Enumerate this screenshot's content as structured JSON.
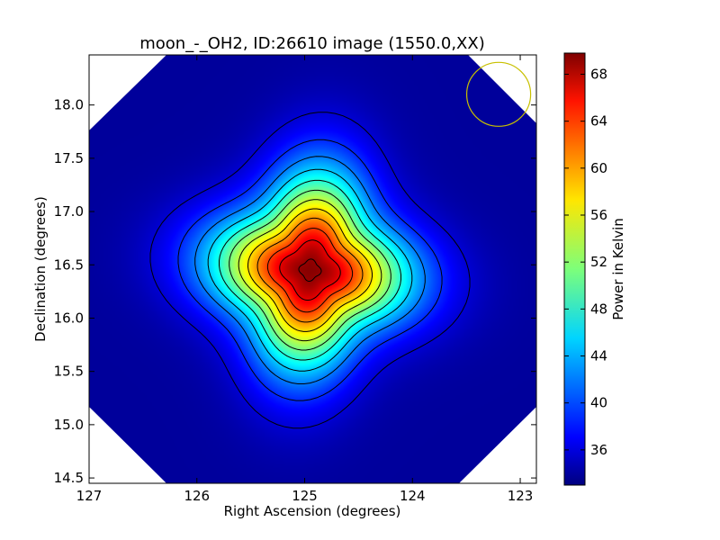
{
  "chart_data": {
    "type": "heatmap",
    "title": "moon_-_OH2, ID:26610 image (1550.0,XX)",
    "xlabel": "Right Ascension (degrees)",
    "ylabel": "Declination (degrees)",
    "xlim": [
      127.0,
      122.85
    ],
    "ylim": [
      14.45,
      18.47
    ],
    "x_ticks": [
      127,
      126,
      125,
      124,
      123
    ],
    "x_tick_labels": [
      "127",
      "126",
      "125",
      "124",
      "123"
    ],
    "y_ticks": [
      14.5,
      15.0,
      15.5,
      16.0,
      16.5,
      17.0,
      17.5,
      18.0
    ],
    "y_tick_labels": [
      "14.5",
      "15.0",
      "15.5",
      "16.0",
      "16.5",
      "17.0",
      "17.5",
      "18.0"
    ],
    "colorbar": {
      "label": "Power in Kelvin",
      "colormap": "jet",
      "range": [
        33.0,
        69.8
      ],
      "ticks": [
        36,
        40,
        44,
        48,
        52,
        56,
        60,
        64,
        68
      ],
      "tick_labels": [
        "36",
        "40",
        "44",
        "48",
        "52",
        "56",
        "60",
        "64",
        "68"
      ]
    },
    "source": {
      "peak_ra": 124.95,
      "peak_dec": 16.45,
      "peak_value": 69.5,
      "background_value": 34.0
    },
    "contours": {
      "color": "#000000",
      "levels": [
        36,
        39,
        42,
        45,
        48,
        51,
        54,
        57,
        60,
        63,
        66,
        69
      ]
    },
    "beam_circle": {
      "center_ra": 123.2,
      "center_dec": 18.1,
      "radius_deg": 0.3,
      "color": "#c8c000"
    },
    "grid": false
  }
}
